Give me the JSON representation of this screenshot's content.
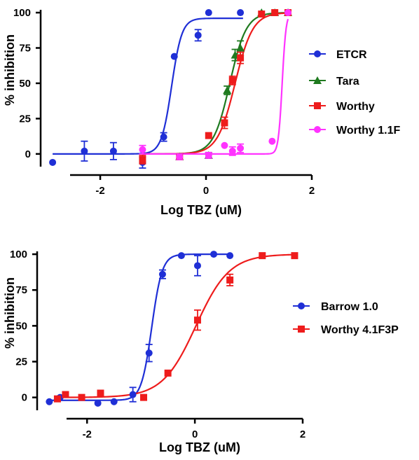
{
  "chart_data": [
    {
      "type": "scatter",
      "xlabel": "Log TBZ (uM)",
      "ylabel": "% inhibition",
      "xlim": [
        -3.1,
        2
      ],
      "ylim": [
        -8,
        102
      ],
      "xticks": [
        -2,
        0,
        2
      ],
      "yticks": [
        0,
        25,
        50,
        75,
        100
      ],
      "xtick_labels": [
        "-2",
        "0",
        "2"
      ],
      "ytick_labels": [
        "0",
        "25",
        "50",
        "75",
        "100"
      ],
      "grid": false,
      "legend_position": "right",
      "series": [
        {
          "name": "ETCR",
          "color": "#1f2fd6",
          "marker": "circle",
          "points": [
            {
              "x": -2.9,
              "y": -6,
              "err": 0
            },
            {
              "x": -2.3,
              "y": 2,
              "err": 7
            },
            {
              "x": -1.75,
              "y": 2,
              "err": 6
            },
            {
              "x": -1.2,
              "y": -6,
              "err": 4
            },
            {
              "x": -0.8,
              "y": 12,
              "err": 3
            },
            {
              "x": -0.6,
              "y": 69,
              "err": 0
            },
            {
              "x": -0.15,
              "y": 84,
              "err": 4
            },
            {
              "x": 0.05,
              "y": 100,
              "err": 0
            },
            {
              "x": 0.65,
              "y": 100,
              "err": 0
            }
          ],
          "fit": {
            "bottom": 0,
            "top": 96,
            "logEC50": -0.65,
            "hill": 4.5,
            "xmin": -2.9,
            "xmax": 0.7
          }
        },
        {
          "name": "Tara",
          "color": "#1f7a1f",
          "marker": "triangle",
          "points": [
            {
              "x": -0.5,
              "y": -2,
              "err": 2
            },
            {
              "x": 0.05,
              "y": -1,
              "err": 2
            },
            {
              "x": 0.4,
              "y": 45,
              "err": 3
            },
            {
              "x": 0.55,
              "y": 70,
              "err": 4
            },
            {
              "x": 0.65,
              "y": 75,
              "err": 5
            },
            {
              "x": 1.05,
              "y": 100,
              "err": 0
            },
            {
              "x": 1.3,
              "y": 100,
              "err": 0
            },
            {
              "x": 1.55,
              "y": 100,
              "err": 0
            }
          ],
          "fit": {
            "bottom": 0,
            "top": 100,
            "logEC50": 0.45,
            "hill": 2.8,
            "xmin": -1.2,
            "xmax": 1.55
          }
        },
        {
          "name": "Worthy",
          "color": "#ee1c1c",
          "marker": "square",
          "points": [
            {
              "x": -1.2,
              "y": -4,
              "err": 3
            },
            {
              "x": -0.5,
              "y": -2,
              "err": 2
            },
            {
              "x": 0.05,
              "y": 13,
              "err": 0
            },
            {
              "x": 0.35,
              "y": 22,
              "err": 4
            },
            {
              "x": 0.5,
              "y": 52,
              "err": 3
            },
            {
              "x": 0.65,
              "y": 68,
              "err": 4
            },
            {
              "x": 1.05,
              "y": 99,
              "err": 0
            },
            {
              "x": 1.3,
              "y": 100,
              "err": 0
            },
            {
              "x": 1.55,
              "y": 100,
              "err": 0
            }
          ],
          "fit": {
            "bottom": 0,
            "top": 100,
            "logEC50": 0.55,
            "hill": 2.6,
            "xmin": -1.2,
            "xmax": 1.55
          }
        },
        {
          "name": "Worthy 1.1F",
          "color": "#ff33ff",
          "marker": "circle",
          "points": [
            {
              "x": -1.2,
              "y": 3,
              "err": 3
            },
            {
              "x": -0.5,
              "y": -2,
              "err": 2
            },
            {
              "x": 0.05,
              "y": -1,
              "err": 2
            },
            {
              "x": 0.35,
              "y": 6,
              "err": 0
            },
            {
              "x": 0.5,
              "y": 2,
              "err": 3
            },
            {
              "x": 0.65,
              "y": 4,
              "err": 3
            },
            {
              "x": 1.25,
              "y": 9,
              "err": 0
            },
            {
              "x": 1.55,
              "y": 100,
              "err": 0
            }
          ],
          "fit": {
            "bottom": 0,
            "top": 100,
            "logEC50": 1.44,
            "hill": 12,
            "xmin": -1.2,
            "xmax": 1.55
          }
        }
      ]
    },
    {
      "type": "scatter",
      "xlabel": "Log TBZ (uM)",
      "ylabel": "% inhibition",
      "xlim": [
        -2.9,
        2
      ],
      "ylim": [
        -8,
        102
      ],
      "xticks": [
        -2,
        0,
        2
      ],
      "yticks": [
        0,
        25,
        50,
        75,
        100
      ],
      "xtick_labels": [
        "-2",
        "0",
        "2"
      ],
      "ytick_labels": [
        "0",
        "25",
        "50",
        "75",
        "100"
      ],
      "grid": false,
      "legend_position": "right",
      "series": [
        {
          "name": "Barrow 1.0",
          "color": "#1f2fd6",
          "marker": "circle",
          "points": [
            {
              "x": -2.7,
              "y": -3,
              "err": 0
            },
            {
              "x": -2.5,
              "y": 0,
              "err": 0
            },
            {
              "x": -1.8,
              "y": -4,
              "err": 0
            },
            {
              "x": -1.5,
              "y": -3,
              "err": 0
            },
            {
              "x": -1.15,
              "y": 2,
              "err": 5
            },
            {
              "x": -0.85,
              "y": 31,
              "err": 6
            },
            {
              "x": -0.6,
              "y": 86,
              "err": 3
            },
            {
              "x": -0.25,
              "y": 99,
              "err": 0
            },
            {
              "x": 0.05,
              "y": 92,
              "err": 7
            },
            {
              "x": 0.35,
              "y": 100,
              "err": 0
            },
            {
              "x": 0.65,
              "y": 99,
              "err": 0
            }
          ],
          "fit": {
            "bottom": -2,
            "top": 100,
            "logEC50": -0.8,
            "hill": 4.5,
            "xmin": -2.7,
            "xmax": 0.65
          }
        },
        {
          "name": "Worthy 4.1F3P",
          "color": "#ee1c1c",
          "marker": "square",
          "points": [
            {
              "x": -2.55,
              "y": -1,
              "err": 0
            },
            {
              "x": -2.4,
              "y": 2,
              "err": 0
            },
            {
              "x": -2.1,
              "y": 0,
              "err": 0
            },
            {
              "x": -1.75,
              "y": 3,
              "err": 0
            },
            {
              "x": -0.95,
              "y": 0,
              "err": 0
            },
            {
              "x": -0.5,
              "y": 17,
              "err": 0
            },
            {
              "x": 0.05,
              "y": 54,
              "err": 7
            },
            {
              "x": 0.65,
              "y": 82,
              "err": 4
            },
            {
              "x": 1.25,
              "y": 99,
              "err": 0
            },
            {
              "x": 1.85,
              "y": 99,
              "err": 0
            }
          ],
          "fit": {
            "bottom": 0,
            "top": 100,
            "logEC50": 0.02,
            "hill": 1.4,
            "xmin": -2.55,
            "xmax": 1.85
          }
        }
      ]
    }
  ]
}
